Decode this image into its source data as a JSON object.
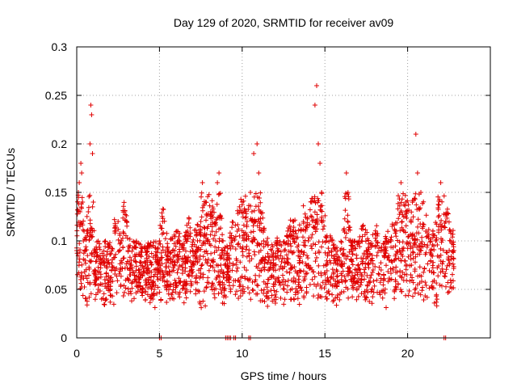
{
  "chart_data": {
    "type": "scatter",
    "title": "Day 129 of 2020, SRMTID for receiver av09",
    "xlabel": "GPS time / hours",
    "ylabel": "SRMTID / TECUs",
    "xlim": [
      0,
      25
    ],
    "ylim": [
      0,
      0.3
    ],
    "x_ticks": [
      0,
      5,
      10,
      15,
      20
    ],
    "x_tick_labels": [
      "0",
      "5",
      "10",
      "15",
      "20"
    ],
    "y_ticks": [
      0,
      0.05,
      0.1,
      0.15,
      0.2,
      0.25,
      0.3
    ],
    "y_tick_labels": [
      "0",
      "0.05",
      "0.1",
      "0.15",
      "0.2",
      "0.25",
      "0.3"
    ],
    "grid": true,
    "marker": "plus",
    "color": "#e00000",
    "series": [
      {
        "name": "SRMTID",
        "description": "dense cloud of roughly 2500 points from 0 to 22.8 h, mostly 0.03-0.15 TECU",
        "points_x": [
          0.0,
          0.1,
          0.15,
          0.2,
          0.25,
          0.3,
          0.35,
          0.4,
          0.5,
          0.6,
          0.7,
          0.8,
          0.85,
          0.9,
          0.95,
          1.0,
          1.05,
          1.1,
          1.2,
          1.3,
          1.5,
          1.7,
          1.9,
          2.1,
          2.3,
          2.5,
          2.7,
          2.9,
          3.1,
          3.3,
          3.5,
          3.8,
          4.0,
          4.3,
          4.6,
          4.9,
          5.0,
          5.2,
          5.5,
          5.8,
          6.1,
          6.4,
          6.7,
          7.0,
          7.3,
          7.5,
          7.6,
          7.8,
          8.1,
          8.4,
          8.5,
          8.6,
          8.8,
          9.1,
          9.4,
          9.7,
          10.0,
          10.3,
          10.5,
          10.7,
          10.9,
          11.0,
          11.1,
          11.3,
          11.6,
          11.9,
          12.2,
          12.5,
          12.8,
          13.1,
          13.4,
          13.7,
          14.0,
          14.2,
          14.4,
          14.5,
          14.6,
          14.7,
          14.8,
          15.1,
          15.4,
          15.7,
          16.0,
          16.3,
          16.6,
          16.9,
          17.2,
          17.5,
          17.8,
          18.1,
          18.4,
          18.7,
          19.0,
          19.3,
          19.6,
          19.9,
          20.2,
          20.5,
          20.6,
          20.8,
          21.1,
          21.4,
          21.7,
          22.0,
          22.3,
          22.6,
          22.8
        ],
        "points_y": [
          0.09,
          0.15,
          0.16,
          0.13,
          0.18,
          0.17,
          0.14,
          0.1,
          0.08,
          0.11,
          0.13,
          0.2,
          0.24,
          0.23,
          0.19,
          0.14,
          0.09,
          0.07,
          0.06,
          0.05,
          0.04,
          0.06,
          0.08,
          0.07,
          0.11,
          0.12,
          0.1,
          0.13,
          0.09,
          0.08,
          0.06,
          0.07,
          0.05,
          0.06,
          0.04,
          0.06,
          0.1,
          0.12,
          0.08,
          0.09,
          0.1,
          0.07,
          0.11,
          0.09,
          0.1,
          0.12,
          0.16,
          0.14,
          0.13,
          0.1,
          0.16,
          0.17,
          0.09,
          0.08,
          0.1,
          0.11,
          0.14,
          0.12,
          0.15,
          0.19,
          0.2,
          0.17,
          0.13,
          0.1,
          0.08,
          0.07,
          0.09,
          0.06,
          0.1,
          0.11,
          0.09,
          0.12,
          0.1,
          0.14,
          0.24,
          0.26,
          0.2,
          0.18,
          0.15,
          0.1,
          0.09,
          0.07,
          0.06,
          0.17,
          0.08,
          0.07,
          0.1,
          0.09,
          0.08,
          0.1,
          0.07,
          0.09,
          0.1,
          0.11,
          0.16,
          0.14,
          0.12,
          0.21,
          0.17,
          0.15,
          0.11,
          0.09,
          0.1,
          0.16,
          0.12,
          0.1,
          0.09
        ],
        "zero_points_x": [
          5.0,
          9.0,
          9.2,
          9.5,
          10.4,
          22.2
        ]
      }
    ]
  }
}
